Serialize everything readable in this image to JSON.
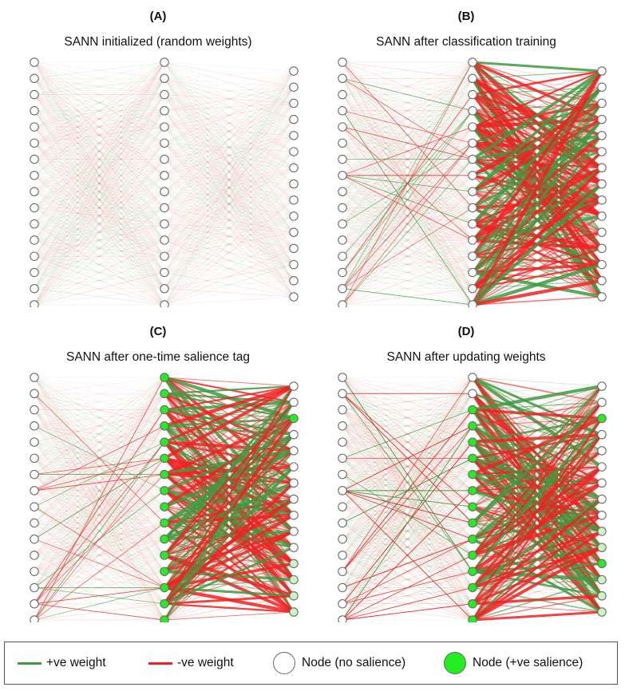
{
  "panels": [
    {
      "tag": "(A)",
      "title": "SANN initialized (random weights)",
      "state": "random",
      "salient_hidden": [],
      "salient_output": [],
      "weak_output": []
    },
    {
      "tag": "(B)",
      "title": "SANN after classification training",
      "state": "trained",
      "salient_hidden": [],
      "salient_output": [],
      "weak_output": []
    },
    {
      "tag": "(C)",
      "title": "SANN after one-time salience tag",
      "state": "tagged",
      "salient_hidden": [
        0,
        1,
        2,
        3,
        4,
        5,
        6,
        7,
        8,
        9,
        10,
        11,
        12,
        13,
        14,
        15
      ],
      "salient_output": [
        2
      ],
      "weak_output": [
        11,
        12,
        13,
        14
      ]
    },
    {
      "tag": "(D)",
      "title": "SANN after updating weights",
      "state": "updated",
      "salient_hidden": [
        2,
        3,
        4,
        5,
        6,
        7,
        8,
        9,
        10,
        11,
        12,
        13,
        14,
        15
      ],
      "salient_output": [
        2,
        11
      ],
      "weak_output": [
        9,
        10,
        12,
        13,
        14
      ]
    }
  ],
  "network": {
    "input_nodes": 16,
    "hidden_nodes": 16,
    "output_nodes": 15
  },
  "legend": {
    "positive_label": "+ve weight",
    "negative_label": "-ve weight",
    "node_no_salience_label": "Node (no salience)",
    "node_salience_label": "Node (+ve salience)"
  },
  "colors": {
    "positive": "#3f9a3f",
    "negative": "#ee2222",
    "salient_fill": "#22ee22",
    "weak_salient_fill": "#c9f7c3",
    "node_stroke": "#6a6a6a"
  }
}
